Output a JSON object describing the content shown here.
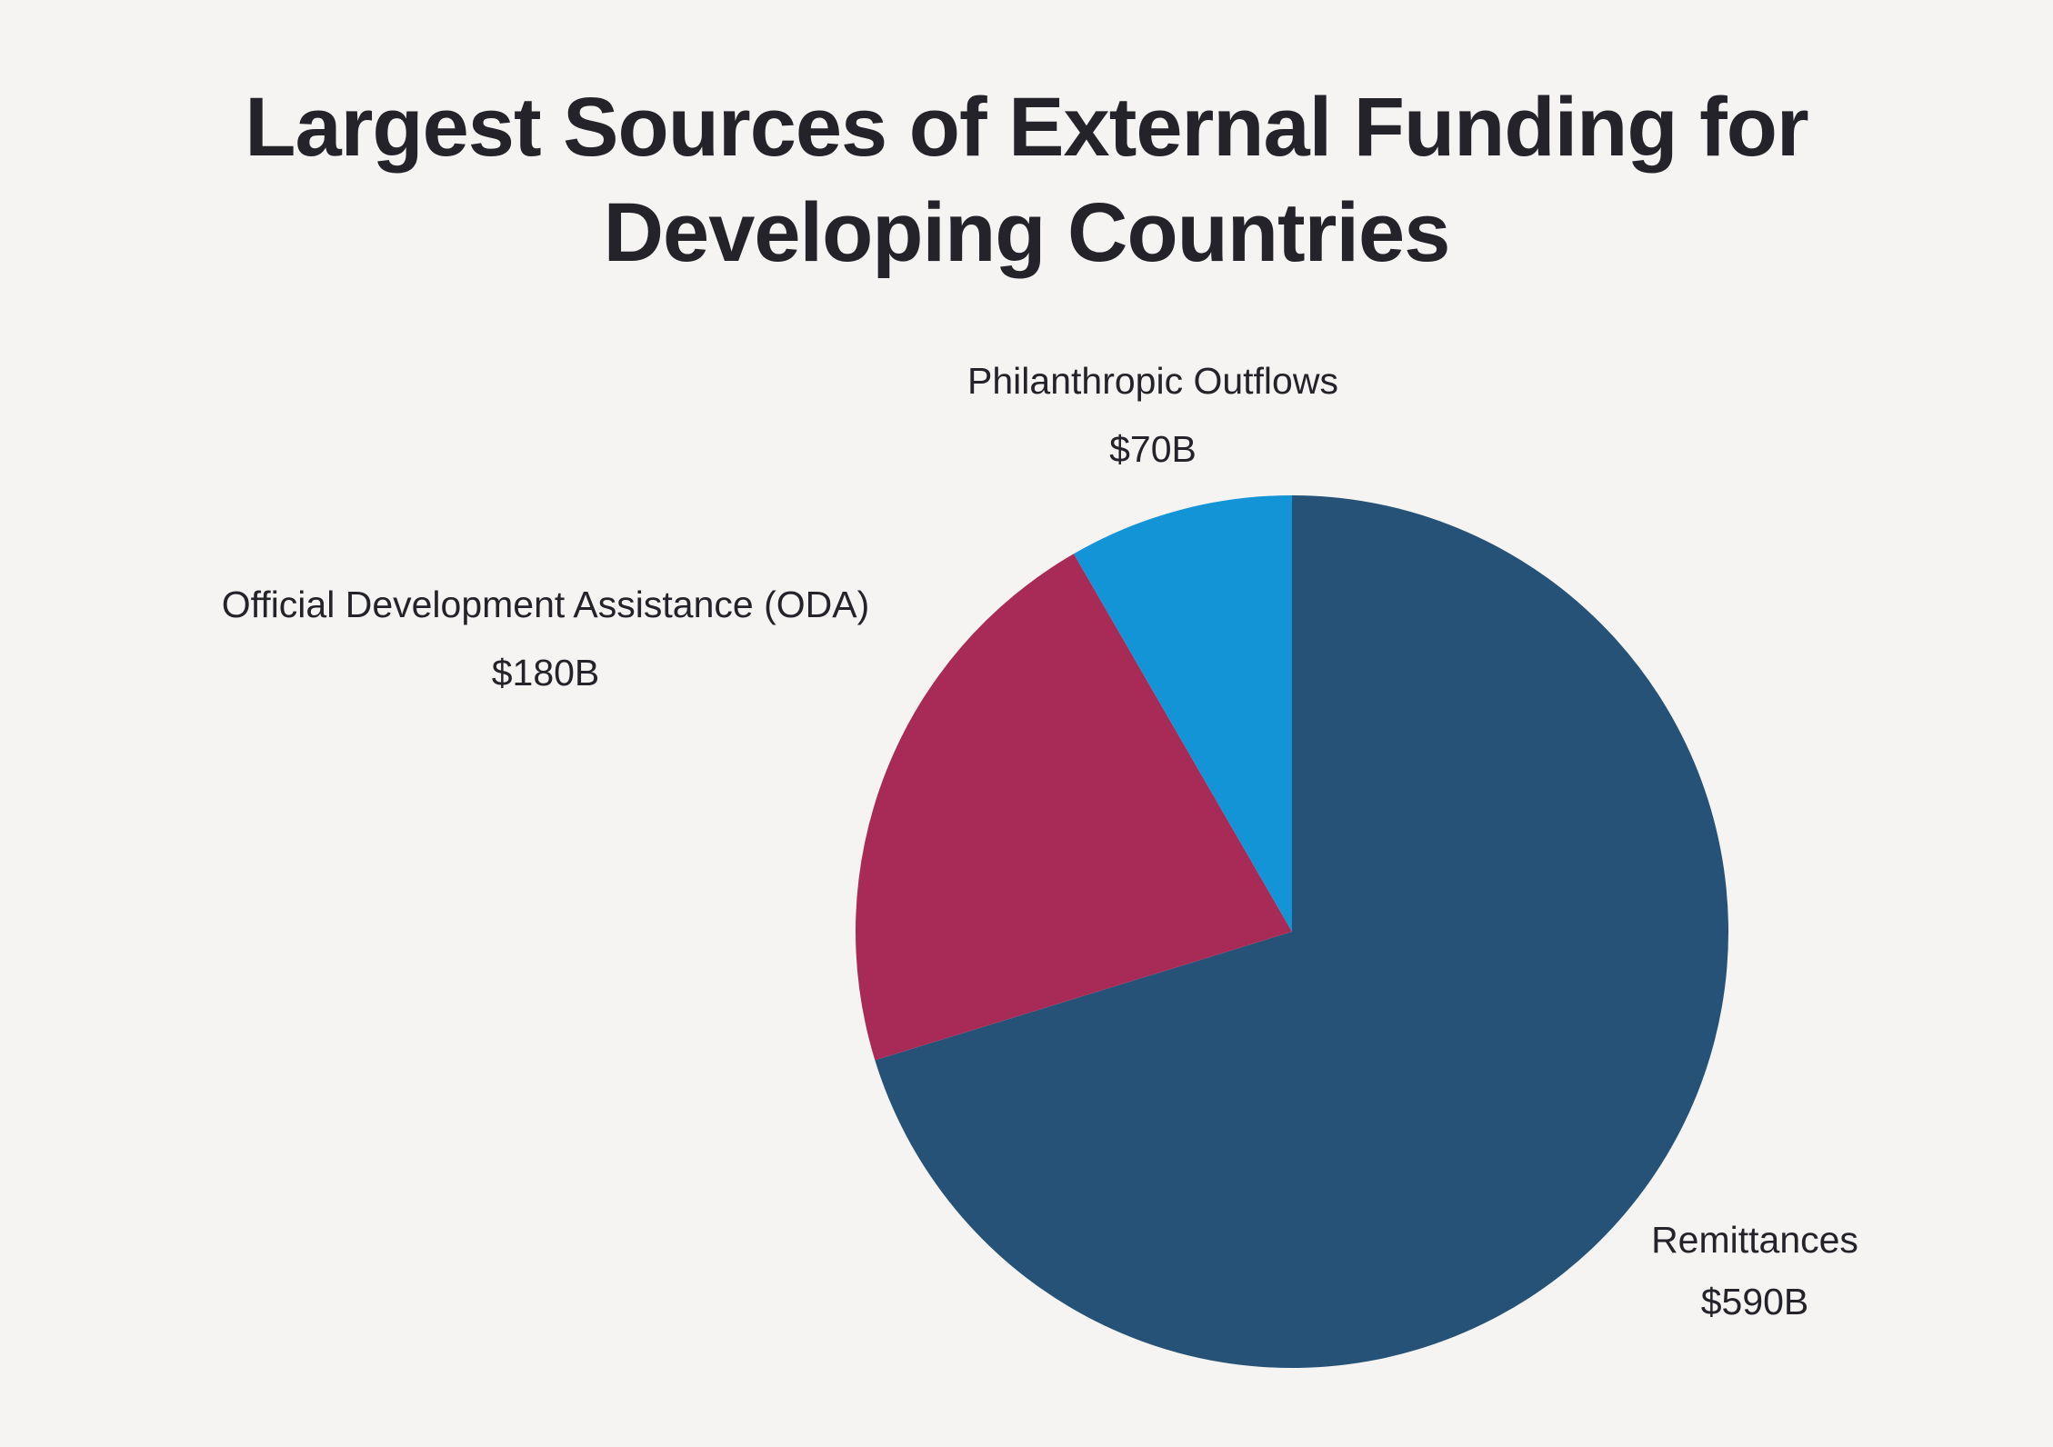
{
  "chart_data": {
    "type": "pie",
    "title": "Largest Sources of External Funding for Developing Countries",
    "title_lines": [
      "Largest Sources of External Funding for",
      "Developing Countries"
    ],
    "start": "12 o'clock",
    "direction": "clockwise",
    "slices": [
      {
        "label": "Remittances",
        "value": 590,
        "display": "$590B",
        "color": "#255276"
      },
      {
        "label": "Official Development Assistance (ODA)",
        "value": 180,
        "display": "$180B",
        "color": "#a82b57"
      },
      {
        "label": "Philanthropic Outflows",
        "value": 70,
        "display": "$70B",
        "color": "#1294d6"
      }
    ]
  }
}
